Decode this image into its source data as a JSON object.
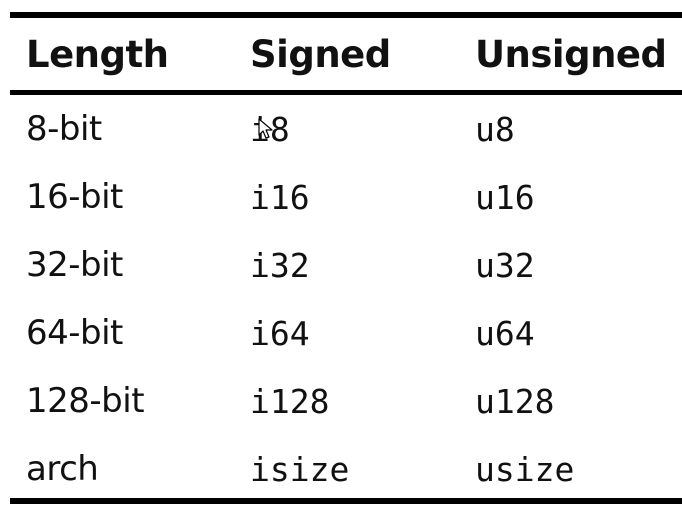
{
  "table": {
    "headers": {
      "length": "Length",
      "signed": "Signed",
      "unsigned": "Unsigned"
    },
    "rows": [
      {
        "length": "8-bit",
        "signed": "i8",
        "unsigned": "u8"
      },
      {
        "length": "16-bit",
        "signed": "i16",
        "unsigned": "u16"
      },
      {
        "length": "32-bit",
        "signed": "i32",
        "unsigned": "u32"
      },
      {
        "length": "64-bit",
        "signed": "i64",
        "unsigned": "u64"
      },
      {
        "length": "128-bit",
        "signed": "i128",
        "unsigned": "u128"
      },
      {
        "length": "arch",
        "signed": "isize",
        "unsigned": "usize"
      }
    ]
  },
  "cursor_icon": "mouse-pointer-icon"
}
